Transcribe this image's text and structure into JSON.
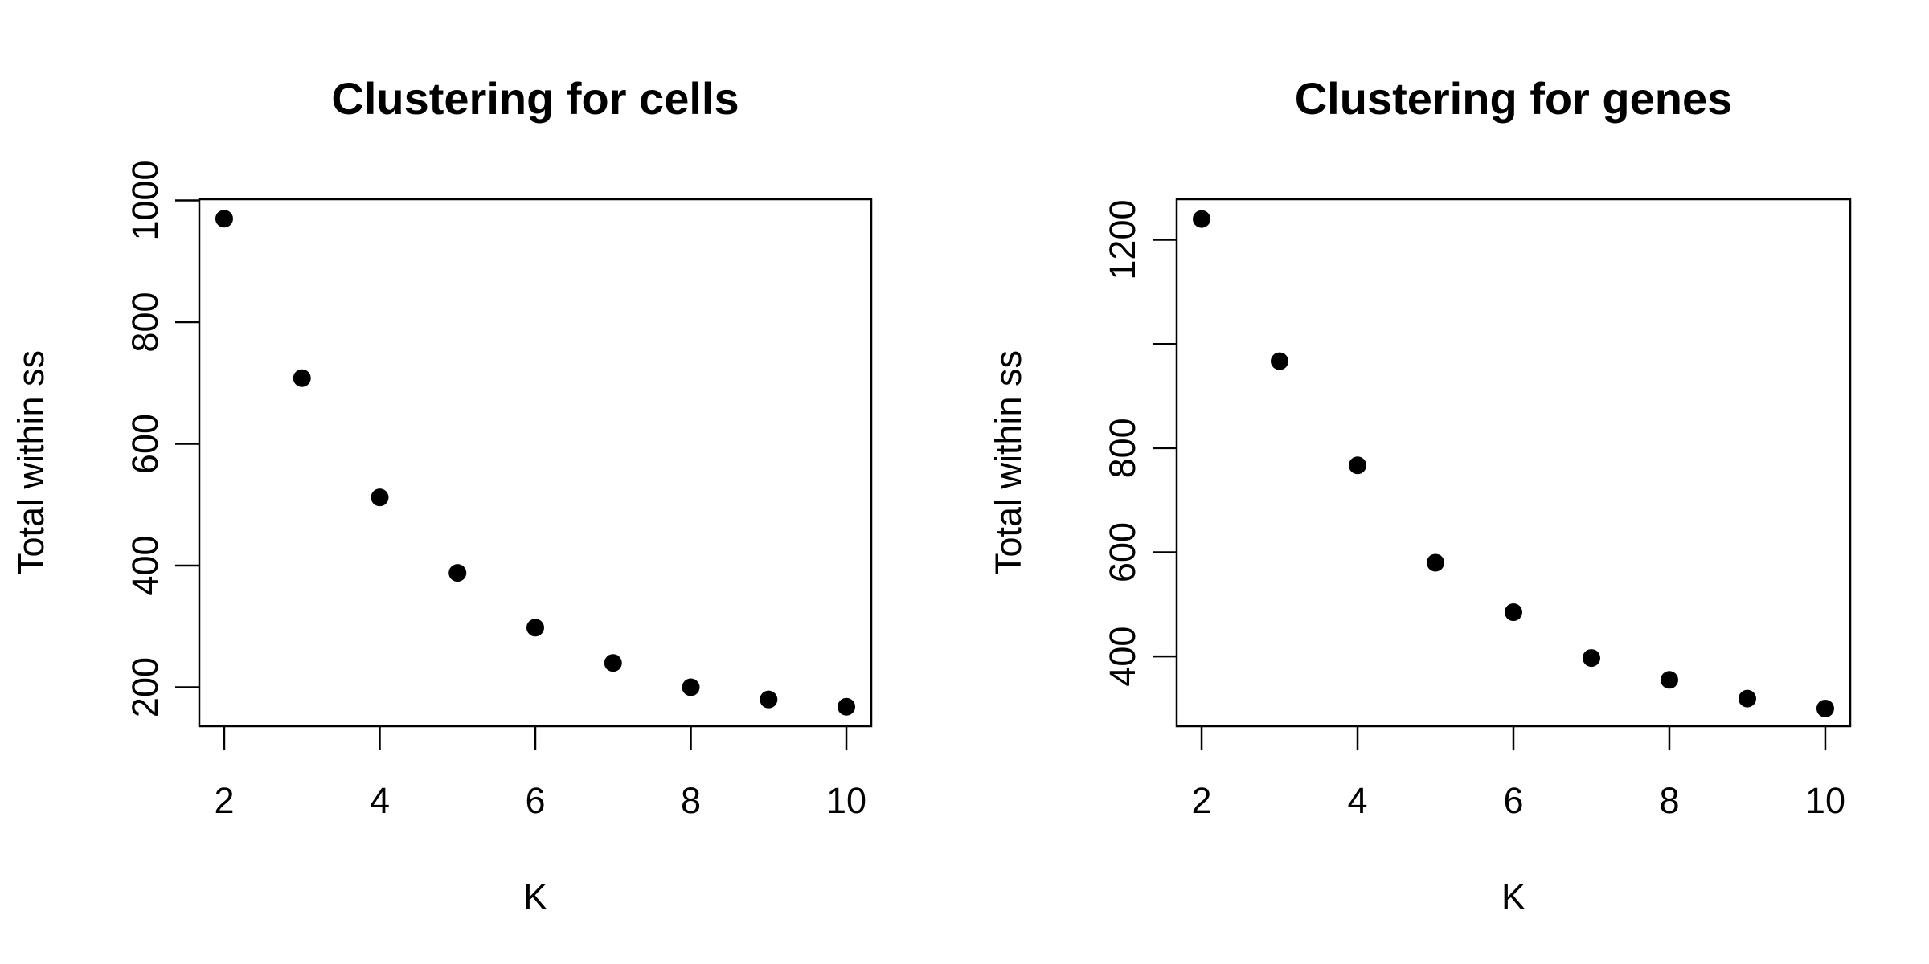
{
  "chart_data": [
    {
      "type": "scatter",
      "title": "Clustering for cells",
      "xlabel": "K",
      "ylabel": "Total within ss",
      "x": [
        2,
        3,
        4,
        5,
        6,
        7,
        8,
        9,
        10
      ],
      "y": [
        970,
        708,
        512,
        388,
        298,
        240,
        200,
        180,
        168
      ],
      "xlim": [
        1.68,
        10.32
      ],
      "ylim": [
        136,
        1002
      ],
      "xticks": [
        2,
        4,
        6,
        8,
        10
      ],
      "yticks": [
        200,
        400,
        600,
        800,
        1000
      ],
      "xtick_labels": [
        "2",
        "4",
        "6",
        "8",
        "10"
      ],
      "ytick_labels": [
        "200",
        "400",
        "600",
        "800",
        "1000"
      ],
      "grid": false,
      "legend": "none",
      "marker_color": "#000000"
    },
    {
      "type": "scatter",
      "title": "Clustering for genes",
      "xlabel": "K",
      "ylabel": "Total within ss",
      "x": [
        2,
        3,
        4,
        5,
        6,
        7,
        8,
        9,
        10
      ],
      "y": [
        1240,
        967,
        767,
        580,
        485,
        397,
        355,
        319,
        300
      ],
      "xlim": [
        1.68,
        10.32
      ],
      "ylim": [
        266,
        1278
      ],
      "xticks": [
        2,
        4,
        6,
        8,
        10
      ],
      "yticks": [
        400,
        600,
        800,
        1000,
        1200
      ],
      "xtick_labels": [
        "2",
        "4",
        "6",
        "8",
        "10"
      ],
      "ytick_labels": [
        "400",
        "600",
        "800",
        "",
        "1200"
      ],
      "grid": false,
      "legend": "none",
      "marker_color": "#000000"
    }
  ]
}
